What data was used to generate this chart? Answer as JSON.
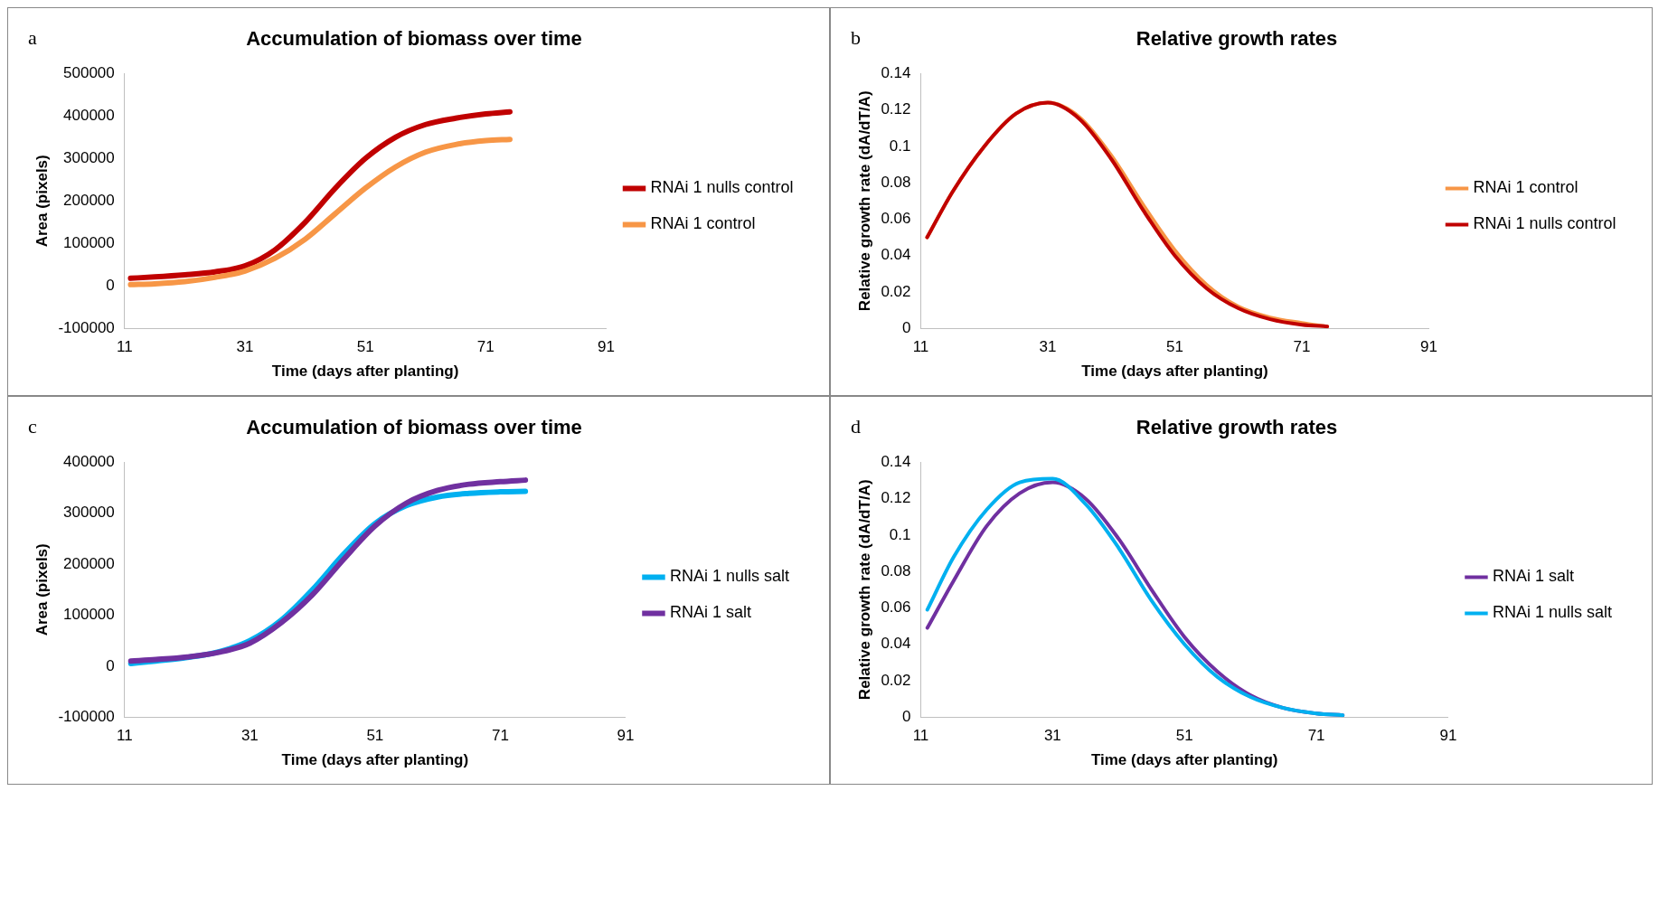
{
  "chart_data": [
    {
      "type": "line",
      "title": "Accumulation of biomass over time",
      "xlabel": "Time (days after planting)",
      "ylabel": "Area (pixels)",
      "annotations": [
        "a"
      ],
      "xlim": [
        11,
        91
      ],
      "xticks": [
        11,
        31,
        51,
        71,
        91
      ],
      "ylim": [
        -100000,
        500000
      ],
      "yticks": [
        -100000,
        0,
        100000,
        200000,
        300000,
        400000,
        500000
      ],
      "grid": false,
      "legend": "right",
      "marker": "none",
      "line_style": "solid",
      "x": [
        12,
        16,
        21,
        26,
        31,
        36,
        41,
        46,
        51,
        56,
        61,
        66,
        71,
        75
      ],
      "series": [
        {
          "name": "RNAi 1 nulls control",
          "color": "#c00000",
          "values": [
            18000,
            21000,
            26000,
            33000,
            47000,
            85000,
            150000,
            230000,
            300000,
            350000,
            380000,
            395000,
            405000,
            410000
          ]
        },
        {
          "name": "RNAi 1 control",
          "color": "#f79646",
          "values": [
            3000,
            5000,
            10000,
            20000,
            35000,
            65000,
            110000,
            170000,
            230000,
            280000,
            315000,
            333000,
            342000,
            345000
          ]
        }
      ]
    },
    {
      "type": "line",
      "title": "Relative growth rates",
      "xlabel": "Time (days after planting)",
      "ylabel": "Relative growth rate (dA/dT/A)",
      "annotations": [
        "b"
      ],
      "xlim": [
        11,
        91
      ],
      "xticks": [
        11,
        31,
        51,
        71,
        91
      ],
      "ylim": [
        0,
        0.14
      ],
      "yticks": [
        0,
        0.02,
        0.04,
        0.06,
        0.08,
        0.1,
        0.12,
        0.14
      ],
      "grid": false,
      "legend": "right",
      "marker": "none",
      "line_style": "solid",
      "x": [
        12,
        16,
        21,
        26,
        31,
        36,
        41,
        46,
        51,
        56,
        61,
        66,
        71,
        75
      ],
      "series": [
        {
          "name": "RNAi 1 control",
          "color": "#f79646",
          "values": [
            0.05,
            0.075,
            0.1,
            0.118,
            0.124,
            0.116,
            0.095,
            0.068,
            0.043,
            0.024,
            0.012,
            0.006,
            0.003,
            0.001
          ]
        },
        {
          "name": "RNAi 1 nulls control",
          "color": "#c00000",
          "values": [
            0.05,
            0.075,
            0.1,
            0.118,
            0.124,
            0.115,
            0.093,
            0.065,
            0.04,
            0.022,
            0.011,
            0.005,
            0.002,
            0.001
          ]
        }
      ]
    },
    {
      "type": "line",
      "title": "Accumulation of biomass over time",
      "xlabel": "Time (days after planting)",
      "ylabel": "Area (pixels)",
      "annotations": [
        "c"
      ],
      "xlim": [
        11,
        91
      ],
      "xticks": [
        11,
        31,
        51,
        71,
        91
      ],
      "ylim": [
        -100000,
        400000
      ],
      "yticks": [
        -100000,
        0,
        100000,
        200000,
        300000,
        400000
      ],
      "grid": false,
      "legend": "right",
      "marker": "none",
      "line_style": "solid",
      "x": [
        12,
        16,
        21,
        26,
        31,
        36,
        41,
        46,
        51,
        56,
        61,
        66,
        71,
        75
      ],
      "series": [
        {
          "name": "RNAi 1 nulls salt",
          "color": "#00b0f0",
          "values": [
            5000,
            10000,
            17000,
            28000,
            50000,
            90000,
            150000,
            220000,
            280000,
            315000,
            332000,
            339000,
            342000,
            343000
          ]
        },
        {
          "name": "RNAi 1 salt",
          "color": "#7030a0",
          "values": [
            10000,
            13000,
            18000,
            27000,
            45000,
            85000,
            140000,
            210000,
            275000,
            320000,
            345000,
            357000,
            362000,
            365000
          ]
        }
      ]
    },
    {
      "type": "line",
      "title": "Relative growth rates",
      "xlabel": "Time (days after planting)",
      "ylabel": "Relative growth rate (dA/dT/A)",
      "annotations": [
        "d"
      ],
      "xlim": [
        11,
        91
      ],
      "xticks": [
        11,
        31,
        51,
        71,
        91
      ],
      "ylim": [
        0,
        0.14
      ],
      "yticks": [
        0,
        0.02,
        0.04,
        0.06,
        0.08,
        0.1,
        0.12,
        0.14
      ],
      "grid": false,
      "legend": "right",
      "marker": "none",
      "line_style": "solid",
      "x": [
        12,
        16,
        21,
        26,
        31,
        36,
        41,
        46,
        51,
        56,
        61,
        66,
        71,
        75
      ],
      "series": [
        {
          "name": "RNAi 1 salt",
          "color": "#7030a0",
          "values": [
            0.049,
            0.075,
            0.105,
            0.123,
            0.129,
            0.12,
            0.098,
            0.07,
            0.044,
            0.025,
            0.012,
            0.005,
            0.002,
            0.001
          ]
        },
        {
          "name": "RNAi 1 nulls salt",
          "color": "#00b0f0",
          "values": [
            0.059,
            0.088,
            0.114,
            0.129,
            0.131,
            0.117,
            0.093,
            0.064,
            0.04,
            0.022,
            0.011,
            0.005,
            0.002,
            0.001
          ]
        }
      ]
    }
  ]
}
